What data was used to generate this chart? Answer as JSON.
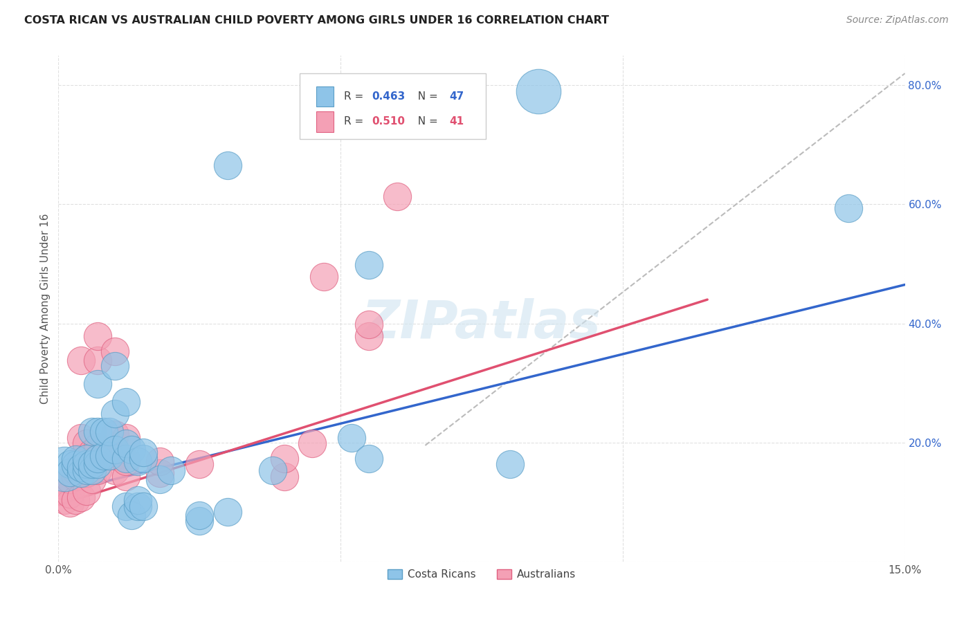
{
  "title": "COSTA RICAN VS AUSTRALIAN CHILD POVERTY AMONG GIRLS UNDER 16 CORRELATION CHART",
  "source": "Source: ZipAtlas.com",
  "ylabel": "Child Poverty Among Girls Under 16",
  "xlim": [
    0.0,
    0.15
  ],
  "ylim": [
    0.0,
    0.85
  ],
  "xtick_positions": [
    0.0,
    0.05,
    0.1,
    0.15
  ],
  "xticklabels": [
    "0.0%",
    "",
    "",
    "15.0%"
  ],
  "ytick_positions": [
    0.0,
    0.2,
    0.4,
    0.6,
    0.8
  ],
  "yticklabels": [
    "",
    "20.0%",
    "40.0%",
    "60.0%",
    "80.0%"
  ],
  "watermark": "ZIPatlas",
  "costa_rica_color": "#8ec4e8",
  "australia_color": "#f4a0b5",
  "costa_rica_edge": "#5a9ec6",
  "australia_edge": "#e06080",
  "blue_line_color": "#3366cc",
  "pink_line_color": "#e05070",
  "dashed_line_color": "#bbbbbb",
  "grid_color": "#e0e0e0",
  "background_color": "#ffffff",
  "title_color": "#222222",
  "source_color": "#888888",
  "ylabel_color": "#555555",
  "tick_color": "#555555",
  "ytick_color": "#3366cc",
  "costa_rica_points": [
    [
      0.001,
      0.155,
      18
    ],
    [
      0.002,
      0.163,
      7
    ],
    [
      0.002,
      0.15,
      7
    ],
    [
      0.003,
      0.162,
      7
    ],
    [
      0.003,
      0.172,
      7
    ],
    [
      0.004,
      0.148,
      7
    ],
    [
      0.004,
      0.158,
      7
    ],
    [
      0.005,
      0.153,
      7
    ],
    [
      0.005,
      0.163,
      7
    ],
    [
      0.005,
      0.173,
      7
    ],
    [
      0.006,
      0.153,
      7
    ],
    [
      0.006,
      0.163,
      7
    ],
    [
      0.006,
      0.218,
      7
    ],
    [
      0.007,
      0.163,
      7
    ],
    [
      0.007,
      0.173,
      7
    ],
    [
      0.007,
      0.218,
      7
    ],
    [
      0.007,
      0.298,
      7
    ],
    [
      0.008,
      0.178,
      7
    ],
    [
      0.008,
      0.218,
      7
    ],
    [
      0.009,
      0.178,
      7
    ],
    [
      0.009,
      0.218,
      7
    ],
    [
      0.01,
      0.188,
      7
    ],
    [
      0.01,
      0.248,
      7
    ],
    [
      0.01,
      0.328,
      7
    ],
    [
      0.012,
      0.093,
      7
    ],
    [
      0.012,
      0.173,
      7
    ],
    [
      0.012,
      0.198,
      7
    ],
    [
      0.012,
      0.268,
      7
    ],
    [
      0.013,
      0.078,
      7
    ],
    [
      0.013,
      0.188,
      7
    ],
    [
      0.014,
      0.093,
      7
    ],
    [
      0.014,
      0.103,
      7
    ],
    [
      0.014,
      0.168,
      7
    ],
    [
      0.015,
      0.093,
      7
    ],
    [
      0.015,
      0.173,
      7
    ],
    [
      0.015,
      0.183,
      7
    ],
    [
      0.018,
      0.138,
      7
    ],
    [
      0.02,
      0.153,
      7
    ],
    [
      0.025,
      0.068,
      7
    ],
    [
      0.025,
      0.078,
      7
    ],
    [
      0.03,
      0.083,
      7
    ],
    [
      0.038,
      0.153,
      7
    ],
    [
      0.052,
      0.208,
      7
    ],
    [
      0.055,
      0.173,
      7
    ],
    [
      0.055,
      0.498,
      7
    ],
    [
      0.08,
      0.163,
      7
    ],
    [
      0.14,
      0.593,
      7
    ]
  ],
  "australia_points": [
    [
      0.001,
      0.103,
      7
    ],
    [
      0.001,
      0.128,
      7
    ],
    [
      0.002,
      0.098,
      7
    ],
    [
      0.002,
      0.113,
      7
    ],
    [
      0.002,
      0.138,
      7
    ],
    [
      0.003,
      0.103,
      7
    ],
    [
      0.003,
      0.143,
      7
    ],
    [
      0.003,
      0.153,
      7
    ],
    [
      0.004,
      0.108,
      7
    ],
    [
      0.004,
      0.163,
      7
    ],
    [
      0.004,
      0.173,
      7
    ],
    [
      0.004,
      0.208,
      7
    ],
    [
      0.004,
      0.338,
      7
    ],
    [
      0.005,
      0.118,
      7
    ],
    [
      0.005,
      0.148,
      7
    ],
    [
      0.005,
      0.173,
      7
    ],
    [
      0.005,
      0.198,
      7
    ],
    [
      0.006,
      0.138,
      7
    ],
    [
      0.006,
      0.163,
      7
    ],
    [
      0.006,
      0.183,
      7
    ],
    [
      0.007,
      0.153,
      7
    ],
    [
      0.007,
      0.183,
      7
    ],
    [
      0.007,
      0.193,
      7
    ],
    [
      0.007,
      0.338,
      7
    ],
    [
      0.007,
      0.378,
      7
    ],
    [
      0.01,
      0.153,
      7
    ],
    [
      0.01,
      0.178,
      7
    ],
    [
      0.01,
      0.213,
      7
    ],
    [
      0.01,
      0.353,
      7
    ],
    [
      0.012,
      0.143,
      7
    ],
    [
      0.012,
      0.168,
      7
    ],
    [
      0.012,
      0.208,
      7
    ],
    [
      0.018,
      0.148,
      7
    ],
    [
      0.018,
      0.168,
      7
    ],
    [
      0.025,
      0.163,
      7
    ],
    [
      0.04,
      0.143,
      7
    ],
    [
      0.04,
      0.173,
      7
    ],
    [
      0.045,
      0.198,
      7
    ],
    [
      0.047,
      0.478,
      7
    ],
    [
      0.055,
      0.378,
      7
    ],
    [
      0.055,
      0.398,
      7
    ],
    [
      0.06,
      0.613,
      7
    ]
  ],
  "blue_line_x": [
    0.0,
    0.15
  ],
  "blue_line_y": [
    0.115,
    0.465
  ],
  "pink_line_x": [
    0.0,
    0.115
  ],
  "pink_line_y": [
    0.095,
    0.44
  ],
  "dashed_line_x": [
    0.065,
    0.15
  ],
  "dashed_line_y": [
    0.195,
    0.82
  ],
  "special_blue_point": [
    0.085,
    0.79,
    18
  ],
  "special_blue_point2": [
    0.03,
    0.665,
    7
  ]
}
